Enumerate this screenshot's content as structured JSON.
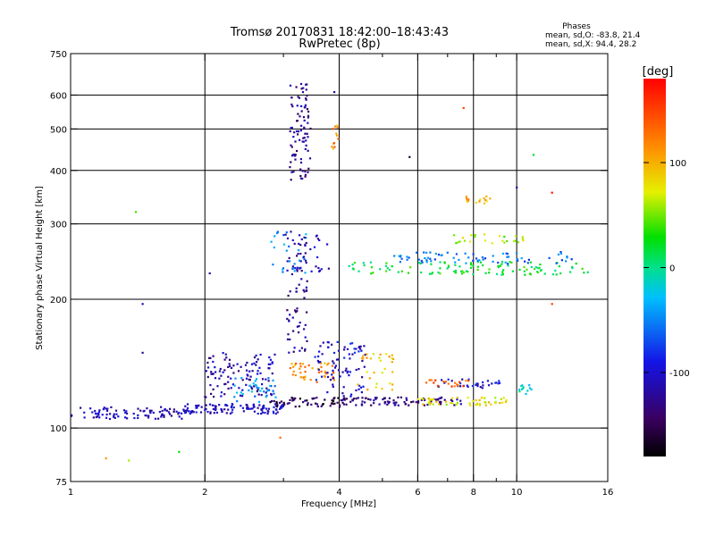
{
  "chart_data": {
    "type": "scatter",
    "title": "Tromsø 20170831 18:42:00–18:43:43",
    "subtitle": "RwPretec (8p)",
    "xlabel": "Frequency [MHz]",
    "ylabel": "Stationary phase Virtual Height [km]",
    "x_scale": "log",
    "y_scale": "log",
    "xlim": [
      1,
      16
    ],
    "ylim": [
      75,
      750
    ],
    "x_ticks": [
      1,
      2,
      4,
      6,
      8,
      10,
      16
    ],
    "x_minor_ticks": [
      3,
      5,
      7,
      9
    ],
    "y_ticks": [
      75,
      100,
      200,
      300,
      400,
      500,
      600,
      750
    ],
    "grid": true,
    "phase_stats": {
      "heading": "Phases",
      "line_o": "mean, sd,O: -83.8, 21.4",
      "line_x": "mean, sd,X:  94.4, 28.2"
    },
    "colorbar": {
      "label": "[deg]",
      "range": [
        -180,
        180
      ],
      "ticks": [
        100,
        0,
        -100
      ]
    },
    "clusters": [
      {
        "f_range": [
          1.0,
          1.8
        ],
        "h_range": [
          105,
          112
        ],
        "phase": -110,
        "count": 90
      },
      {
        "f_range": [
          1.8,
          3.0
        ],
        "h_range": [
          108,
          114
        ],
        "phase": -105,
        "count": 110
      },
      {
        "f_range": [
          2.0,
          2.9
        ],
        "h_range": [
          118,
          150
        ],
        "phase": -115,
        "count": 110
      },
      {
        "f_range": [
          2.3,
          2.9
        ],
        "h_range": [
          115,
          132
        ],
        "phase": -40,
        "count": 35
      },
      {
        "f_range": [
          2.8,
          4.2
        ],
        "h_range": [
          112,
          118
        ],
        "phase": -150,
        "count": 60
      },
      {
        "f_range": [
          4.0,
          7.5
        ],
        "h_range": [
          113,
          118
        ],
        "phase": -130,
        "count": 90
      },
      {
        "f_range": [
          6.0,
          9.5
        ],
        "h_range": [
          113,
          118
        ],
        "phase": 80,
        "count": 55
      },
      {
        "f_range": [
          3.05,
          3.4
        ],
        "h_range": [
          150,
          280
        ],
        "phase": -120,
        "count": 70
      },
      {
        "f_range": [
          3.1,
          3.45
        ],
        "h_range": [
          380,
          640
        ],
        "phase": -125,
        "count": 90
      },
      {
        "f_range": [
          3.85,
          4.0
        ],
        "h_range": [
          450,
          510
        ],
        "phase": 120,
        "count": 12
      },
      {
        "f_range": [
          2.8,
          3.4
        ],
        "h_range": [
          230,
          290
        ],
        "phase": -50,
        "count": 25
      },
      {
        "f_range": [
          3.0,
          3.8
        ],
        "h_range": [
          230,
          290
        ],
        "phase": -110,
        "count": 25
      },
      {
        "f_range": [
          3.1,
          3.9
        ],
        "h_range": [
          128,
          142
        ],
        "phase": 115,
        "count": 45
      },
      {
        "f_range": [
          3.5,
          4.6
        ],
        "h_range": [
          118,
          160
        ],
        "phase": -100,
        "count": 80
      },
      {
        "f_range": [
          4.4,
          5.3
        ],
        "h_range": [
          120,
          150
        ],
        "phase": 90,
        "count": 30
      },
      {
        "f_range": [
          4.2,
          14.5
        ],
        "h_range": [
          228,
          245
        ],
        "phase": 20,
        "count": 110
      },
      {
        "f_range": [
          5.3,
          14.0
        ],
        "h_range": [
          242,
          258
        ],
        "phase": -60,
        "count": 70
      },
      {
        "f_range": [
          7.0,
          10.5
        ],
        "h_range": [
          270,
          285
        ],
        "phase": 60,
        "count": 25
      },
      {
        "f_range": [
          7.6,
          8.8
        ],
        "h_range": [
          335,
          348
        ],
        "phase": 100,
        "count": 15
      },
      {
        "f_range": [
          6.5,
          9.2
        ],
        "h_range": [
          124,
          130
        ],
        "phase": -100,
        "count": 30
      },
      {
        "f_range": [
          6.2,
          7.8
        ],
        "h_range": [
          125,
          130
        ],
        "phase": 140,
        "count": 18
      },
      {
        "f_range": [
          10.1,
          10.8
        ],
        "h_range": [
          120,
          126
        ],
        "phase": -20,
        "count": 12
      }
    ],
    "outliers": [
      {
        "f": 1.2,
        "h": 85,
        "phase": 110
      },
      {
        "f": 1.35,
        "h": 84,
        "phase": 60
      },
      {
        "f": 1.4,
        "h": 320,
        "phase": 40
      },
      {
        "f": 1.45,
        "h": 195,
        "phase": -110
      },
      {
        "f": 1.45,
        "h": 150,
        "phase": -120
      },
      {
        "f": 1.75,
        "h": 88,
        "phase": 30
      },
      {
        "f": 2.05,
        "h": 230,
        "phase": -120
      },
      {
        "f": 2.95,
        "h": 95,
        "phase": 130
      },
      {
        "f": 3.9,
        "h": 610,
        "phase": -120
      },
      {
        "f": 5.75,
        "h": 430,
        "phase": -160
      },
      {
        "f": 7.6,
        "h": 560,
        "phase": 150
      },
      {
        "f": 10.0,
        "h": 365,
        "phase": -120
      },
      {
        "f": 10.9,
        "h": 435,
        "phase": 20
      },
      {
        "f": 12.0,
        "h": 355,
        "phase": 170
      },
      {
        "f": 12.0,
        "h": 195,
        "phase": 150
      }
    ]
  }
}
